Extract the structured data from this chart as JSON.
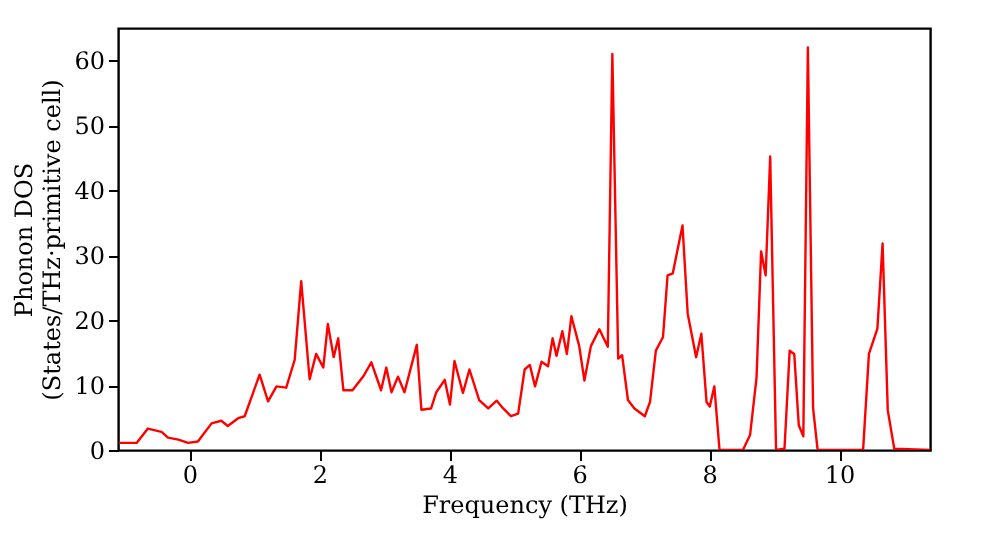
{
  "chart_data": {
    "type": "line",
    "xlabel": "Frequency (THz)",
    "ylabel": "Phonon DOS\n(States/THz·primitive cell)",
    "xlim": [
      -1.1,
      11.4
    ],
    "ylim": [
      0,
      65
    ],
    "xticks": [
      0,
      2,
      4,
      6,
      8,
      10
    ],
    "yticks": [
      0,
      10,
      20,
      30,
      40,
      50,
      60
    ],
    "grid": false,
    "line_style": "solid",
    "marker": "none",
    "series": [
      {
        "color": "#ff0000",
        "x": [
          -1.08,
          -0.81,
          -0.64,
          -0.43,
          -0.33,
          -0.17,
          -0.02,
          0.13,
          0.34,
          0.49,
          0.59,
          0.75,
          0.85,
          1.08,
          1.21,
          1.34,
          1.49,
          1.62,
          1.72,
          1.85,
          1.95,
          2.06,
          2.13,
          2.22,
          2.29,
          2.37,
          2.51,
          2.68,
          2.8,
          2.95,
          3.03,
          3.11,
          3.21,
          3.31,
          3.5,
          3.57,
          3.72,
          3.8,
          3.93,
          4.01,
          4.08,
          4.21,
          4.31,
          4.46,
          4.6,
          4.73,
          4.83,
          4.95,
          5.06,
          5.16,
          5.24,
          5.32,
          5.42,
          5.52,
          5.59,
          5.65,
          5.74,
          5.81,
          5.88,
          6.0,
          6.08,
          6.18,
          6.31,
          6.44,
          6.51,
          6.6,
          6.66,
          6.75,
          6.85,
          7.01,
          7.09,
          7.18,
          7.29,
          7.36,
          7.44,
          7.59,
          7.67,
          7.8,
          7.88,
          7.96,
          8.01,
          8.08,
          8.16,
          8.52,
          8.63,
          8.73,
          8.8,
          8.87,
          8.94,
          9.03,
          9.16,
          9.24,
          9.31,
          9.38,
          9.45,
          9.52,
          9.6,
          9.67,
          10.37,
          10.46,
          10.59,
          10.67,
          10.75,
          10.85,
          11.4
        ],
        "values": [
          1.1,
          1.1,
          3.3,
          2.8,
          1.9,
          1.6,
          1.1,
          1.3,
          4.1,
          4.5,
          3.7,
          4.9,
          5.2,
          11.6,
          7.5,
          9.8,
          9.6,
          13.9,
          26,
          10.9,
          14.8,
          12.7,
          19.4,
          14.3,
          17.2,
          9.2,
          9.2,
          11.4,
          13.5,
          9.2,
          12.7,
          8.9,
          11.3,
          8.9,
          16.2,
          6.2,
          6.4,
          8.9,
          10.8,
          7,
          13.7,
          8.8,
          12.4,
          7.7,
          6.4,
          7.6,
          6.4,
          5.2,
          5.6,
          12.4,
          13.1,
          9.8,
          13.6,
          12.9,
          17.2,
          14.5,
          18.3,
          14.8,
          20.6,
          16,
          10.7,
          16,
          18.6,
          15.9,
          61,
          14.1,
          14.6,
          7.7,
          6.4,
          5.2,
          7.4,
          15.3,
          17.4,
          26.9,
          27.2,
          34.6,
          21,
          14.3,
          17.9,
          7.4,
          6.7,
          9.8,
          0,
          0,
          2.3,
          11.2,
          30.6,
          26.9,
          45.2,
          0,
          0.2,
          15.3,
          14.8,
          3.8,
          2.1,
          62,
          6.5,
          0,
          0,
          14.8,
          18.7,
          31.8,
          6.1,
          0.2,
          0
        ]
      }
    ]
  }
}
